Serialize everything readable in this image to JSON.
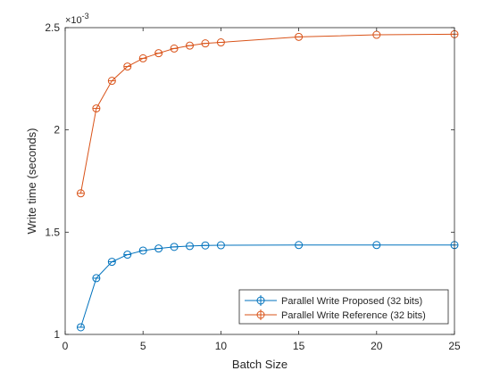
{
  "chart_data": {
    "type": "line",
    "xlabel": "Batch Size",
    "ylabel": "Write time (seconds)",
    "y_exponent_label": "×10",
    "y_exponent_power": "-3",
    "xlim": [
      0,
      25
    ],
    "ylim": [
      0.001,
      0.0025
    ],
    "x_ticks": [
      0,
      5,
      10,
      15,
      20,
      25
    ],
    "y_ticks": [
      0.001,
      0.0015,
      0.002,
      0.0025
    ],
    "x_tick_labels": [
      "0",
      "5",
      "10",
      "15",
      "20",
      "25"
    ],
    "y_tick_labels": [
      "1",
      "1.5",
      "2",
      "2.5"
    ],
    "grid": false,
    "legend_position": "bottom-right",
    "x": [
      1,
      2,
      3,
      4,
      5,
      6,
      7,
      8,
      9,
      10,
      15,
      20,
      25
    ],
    "series": [
      {
        "name": "Parallel Write Proposed (32 bits)",
        "color": "#0072BD",
        "values": [
          0.001035,
          0.001275,
          0.001355,
          0.00139,
          0.00141,
          0.00142,
          0.001428,
          0.001432,
          0.001435,
          0.001436,
          0.001437,
          0.001437,
          0.001437
        ]
      },
      {
        "name": "Parallel Write Reference (32 bits)",
        "color": "#D95319",
        "values": [
          0.00169,
          0.002105,
          0.00224,
          0.00231,
          0.00235,
          0.002375,
          0.002398,
          0.002412,
          0.002423,
          0.002428,
          0.002455,
          0.002465,
          0.002468
        ]
      }
    ]
  }
}
